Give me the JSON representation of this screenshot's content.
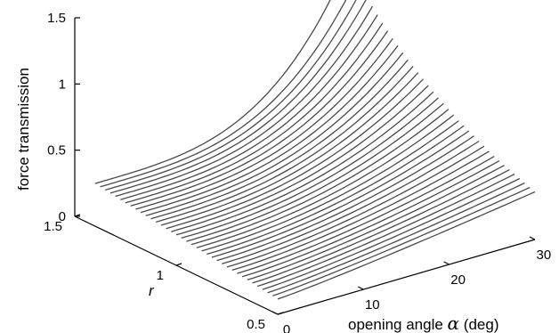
{
  "chart_data": {
    "type": "line",
    "subtype": "3d-waterfall",
    "title": "",
    "zlabel": "force transmission",
    "ylabel": "r",
    "xlabel_prefix": "opening angle ",
    "xlabel_symbol": "α",
    "xlabel_suffix": " (deg)",
    "xlim": [
      0,
      30
    ],
    "ylim": [
      0.5,
      1.5
    ],
    "zlim": [
      0,
      1.5
    ],
    "x_ticks": [
      "0",
      "10",
      "20",
      "30"
    ],
    "y_ticks": [
      "0.5",
      "1",
      "1.5"
    ],
    "z_ticks": [
      "0",
      "0.5",
      "1",
      "1.5"
    ],
    "grid": false,
    "legend": "none",
    "line_color": "#4a4a4a",
    "curve_x_range": [
      0,
      30
    ],
    "series_r": [
      0.5,
      0.525,
      0.55,
      0.575,
      0.6,
      0.625,
      0.65,
      0.675,
      0.7,
      0.725,
      0.75,
      0.775,
      0.8,
      0.825,
      0.85,
      0.875,
      0.9,
      0.925,
      0.95,
      0.975,
      1.0,
      1.025,
      1.05,
      1.075,
      1.1,
      1.125,
      1.15,
      1.175,
      1.2,
      1.225,
      1.25,
      1.275,
      1.3,
      1.325,
      1.35,
      1.375,
      1.4
    ],
    "force_at_alpha_0": [
      0.115,
      0.121,
      0.126,
      0.132,
      0.138,
      0.144,
      0.149,
      0.155,
      0.161,
      0.167,
      0.172,
      0.178,
      0.184,
      0.19,
      0.195,
      0.201,
      0.207,
      0.213,
      0.218,
      0.224,
      0.23,
      0.236,
      0.241,
      0.247,
      0.253,
      0.259,
      0.264,
      0.27,
      0.276,
      0.282,
      0.287,
      0.293,
      0.299,
      0.305,
      0.31,
      0.316,
      0.322
    ],
    "force_at_alpha_30": [
      0.36,
      0.375,
      0.39,
      0.405,
      0.42,
      0.435,
      0.45,
      0.465,
      0.48,
      0.5,
      0.52,
      0.54,
      0.56,
      0.58,
      0.6,
      0.62,
      0.645,
      0.67,
      0.695,
      0.72,
      0.745,
      0.775,
      0.805,
      0.835,
      0.865,
      0.895,
      0.93,
      0.965,
      1.0,
      1.04,
      1.08,
      1.125,
      1.17,
      1.22,
      1.27,
      1.33,
      1.5
    ]
  }
}
